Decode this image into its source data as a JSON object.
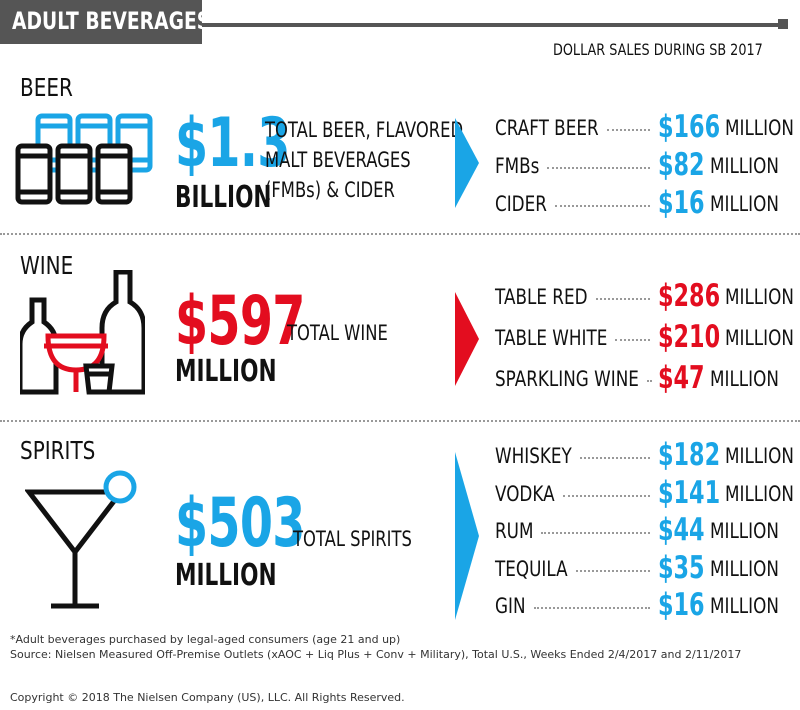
{
  "header": {
    "title": "ADULT BEVERAGES*",
    "subtitle": "DOLLAR SALES DURING SB 2017"
  },
  "colors": {
    "blue": "#1aa5e6",
    "red": "#e30d1f",
    "dark": "#111111",
    "gray": "#555555"
  },
  "chart_data": {
    "type": "table",
    "title": "ADULT BEVERAGES*",
    "subtitle": "DOLLAR SALES DURING SB 2017",
    "sections": [
      {
        "name": "BEER",
        "total_value": "$1.3",
        "total_unit": "BILLION",
        "description_lines": [
          "TOTAL BEER, FLAVORED",
          "MALT BEVERAGES",
          "(FMBs) & CIDER"
        ],
        "accent": "#1aa5e6",
        "items": [
          {
            "label": "CRAFT BEER",
            "value": "$166",
            "unit": "MILLION"
          },
          {
            "label": "FMBs",
            "value": "$82",
            "unit": "MILLION"
          },
          {
            "label": "CIDER",
            "value": "$16",
            "unit": "MILLION"
          }
        ]
      },
      {
        "name": "WINE",
        "total_value": "$597",
        "total_unit": "MILLION",
        "description_lines": [
          "TOTAL WINE"
        ],
        "accent": "#e30d1f",
        "items": [
          {
            "label": "TABLE RED",
            "value": "$286",
            "unit": "MILLION"
          },
          {
            "label": "TABLE WHITE",
            "value": "$210",
            "unit": "MILLION"
          },
          {
            "label": "SPARKLING WINE",
            "value": "$47",
            "unit": "MILLION"
          }
        ]
      },
      {
        "name": "SPIRITS",
        "total_value": "$503",
        "total_unit": "MILLION",
        "description_lines": [
          "TOTAL SPIRITS"
        ],
        "accent": "#1aa5e6",
        "items": [
          {
            "label": "WHISKEY",
            "value": "$182",
            "unit": "MILLION"
          },
          {
            "label": "VODKA",
            "value": "$141",
            "unit": "MILLION"
          },
          {
            "label": "RUM",
            "value": "$44",
            "unit": "MILLION"
          },
          {
            "label": "TEQUILA",
            "value": "$35",
            "unit": "MILLION"
          },
          {
            "label": "GIN",
            "value": "$16",
            "unit": "MILLION"
          }
        ]
      }
    ]
  },
  "footer": {
    "note": "*Adult beverages purchased by legal-aged consumers (age 21 and up)",
    "source": "Source: Nielsen Measured Off-Premise Outlets (xAOC + Liq Plus + Conv + Military), Total U.S., Weeks Ended 2/4/2017 and 2/11/2017",
    "copyright": "Copyright © 2018 The Nielsen Company (US), LLC. All Rights Reserved."
  },
  "icons": [
    "beer-cans-icon",
    "wine-bottles-icon",
    "martini-glass-icon",
    "chevron-right-icon"
  ]
}
